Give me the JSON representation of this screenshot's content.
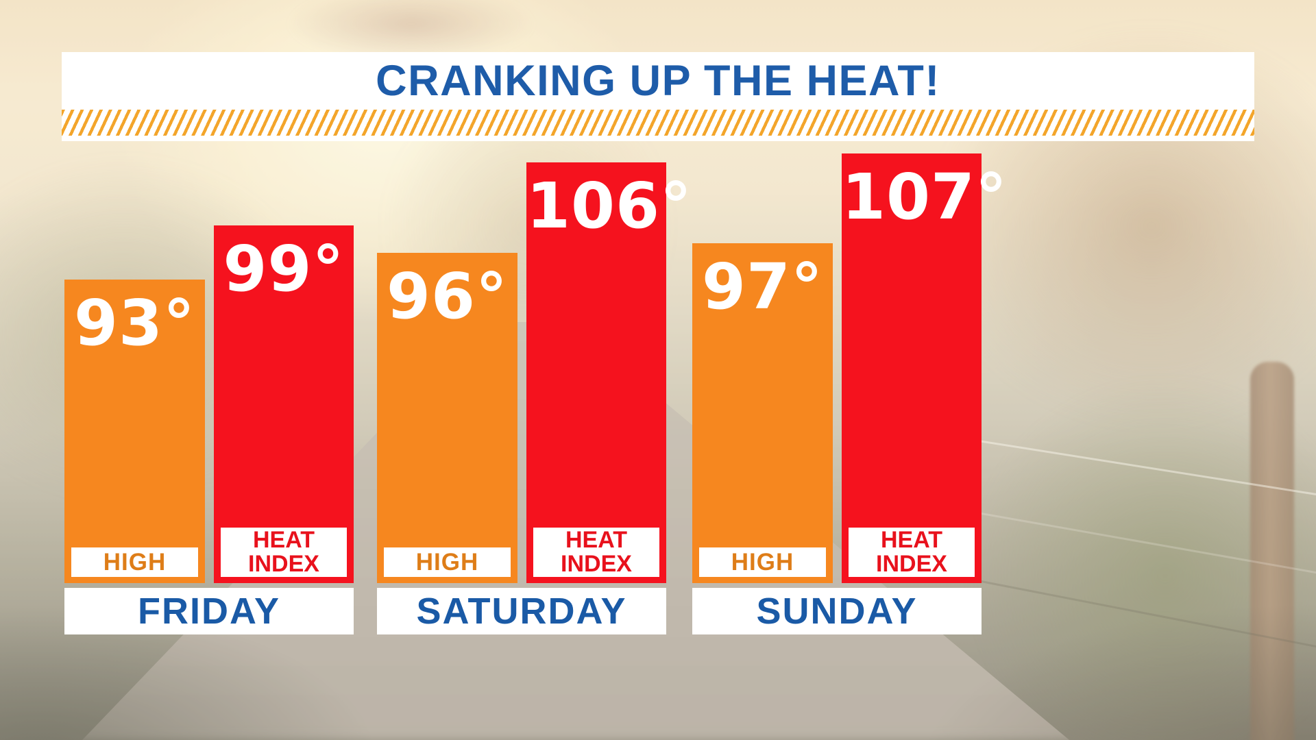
{
  "title": {
    "text": "CRANKING UP THE HEAT!"
  },
  "theme": {
    "title_blue": "#1E5CA9",
    "day_blue": "#1A5AA6",
    "bar_orange": "#F6871F",
    "bar_red": "#F5121E",
    "high_label_orange": "#DE7D18",
    "heat_index_label_red": "#E8111C",
    "hatch_gold": "#F3A52B",
    "panel_white": "#FFFFFF"
  },
  "chart_data": {
    "type": "bar",
    "title": "CRANKING UP THE HEAT!",
    "categories": [
      "FRIDAY",
      "SATURDAY",
      "SUNDAY"
    ],
    "series": [
      {
        "name": "HIGH",
        "values": [
          93,
          96,
          97
        ]
      },
      {
        "name": "HEAT INDEX",
        "values": [
          99,
          106,
          107
        ]
      }
    ],
    "unit": "°F",
    "legend_position": "labels inside bars",
    "grid": false,
    "days": [
      {
        "label": "FRIDAY",
        "high": {
          "value": 93,
          "display": "93°",
          "series_label": "HIGH"
        },
        "heat_index": {
          "value": 99,
          "display": "99°",
          "label_line1": "HEAT",
          "label_line2": "INDEX"
        }
      },
      {
        "label": "SATURDAY",
        "high": {
          "value": 96,
          "display": "96°",
          "series_label": "HIGH"
        },
        "heat_index": {
          "value": 106,
          "display": "106°",
          "label_line1": "HEAT",
          "label_line2": "INDEX"
        }
      },
      {
        "label": "SUNDAY",
        "high": {
          "value": 97,
          "display": "97°",
          "series_label": "HIGH"
        },
        "heat_index": {
          "value": 107,
          "display": "107°",
          "label_line1": "HEAT",
          "label_line2": "INDEX"
        }
      }
    ]
  }
}
